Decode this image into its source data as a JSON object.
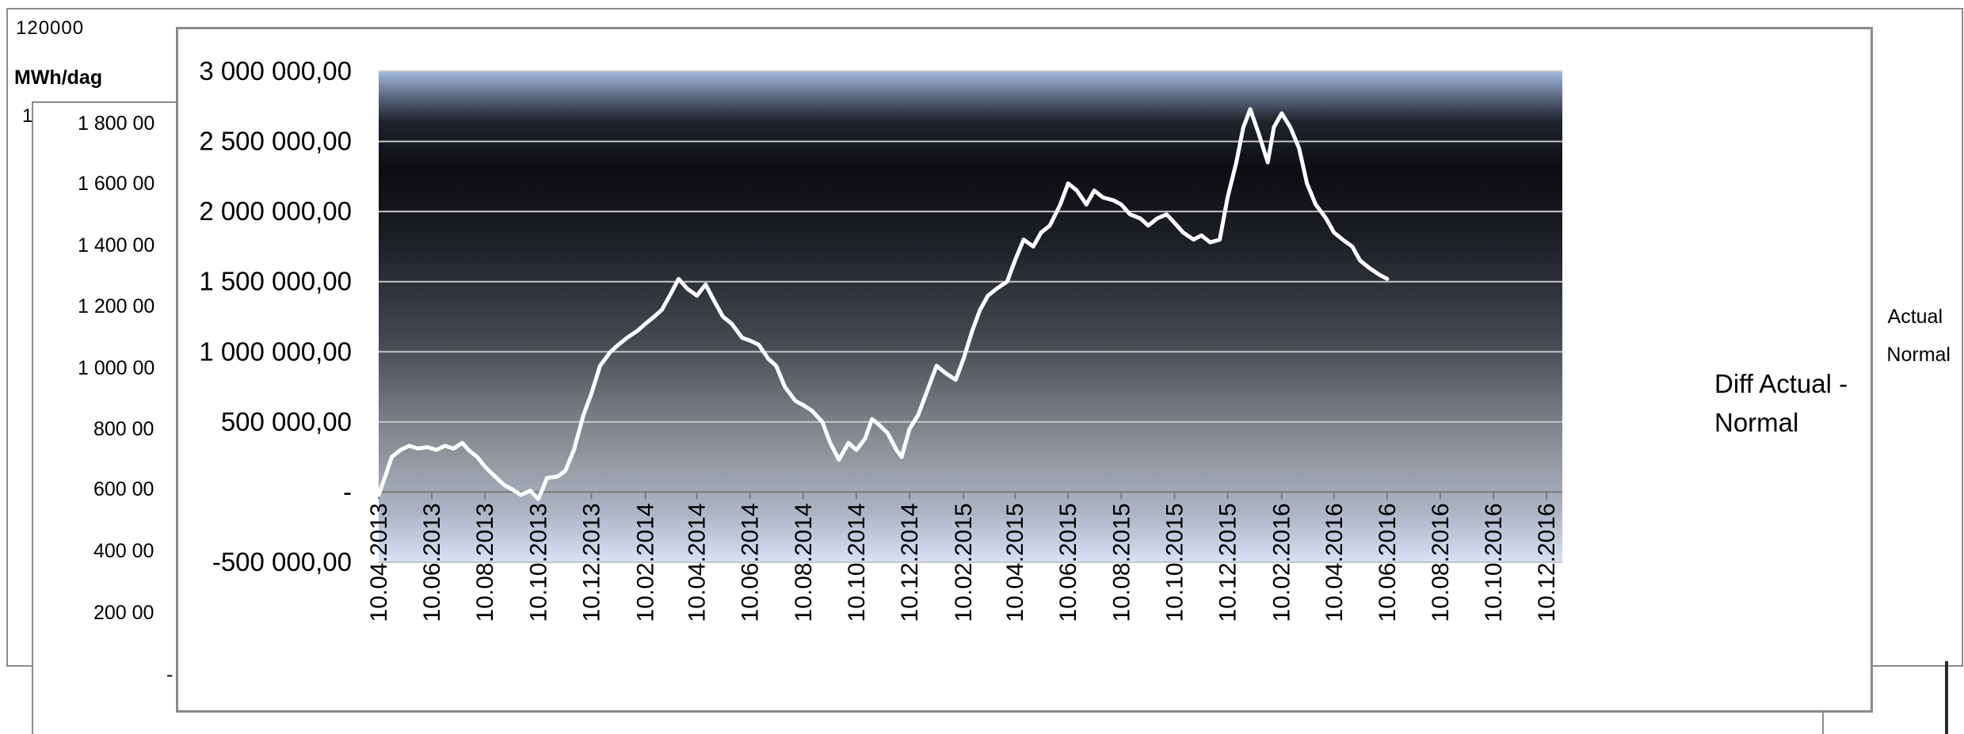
{
  "back_chart": {
    "ytick_top": "120000",
    "ylabel": "MWh/dag",
    "ytick_partial": "1"
  },
  "middle_chart": {
    "yticks": [
      "1 800 00",
      "1 600 00",
      "1 400 00",
      "1 200 00",
      "1 000 00",
      "800 00",
      "600 00",
      "400 00",
      "200 00",
      "-"
    ],
    "legend_fragments": [
      "Actual",
      "Normal"
    ]
  },
  "chart_data": {
    "type": "line",
    "title": "",
    "xlabel": "",
    "ylabel": "",
    "ylim": [
      -500000,
      3000000
    ],
    "yticks": [
      3000000,
      2500000,
      2000000,
      1500000,
      1000000,
      500000,
      0,
      -500000
    ],
    "ytick_labels": [
      "3 000 000,00",
      "2 500 000,00",
      "2 000 000,00",
      "1 500 000,00",
      "1 000 000,00",
      "500 000,00",
      "-",
      "-500 000,00"
    ],
    "x_type": "date",
    "xlim": [
      "2013-04-10",
      "2016-12-28"
    ],
    "xticks": [
      "2013-04-10",
      "2013-06-10",
      "2013-08-10",
      "2013-10-10",
      "2013-12-10",
      "2014-02-10",
      "2014-04-10",
      "2014-06-10",
      "2014-08-10",
      "2014-10-10",
      "2014-12-10",
      "2015-02-10",
      "2015-04-10",
      "2015-06-10",
      "2015-08-10",
      "2015-10-10",
      "2015-12-10",
      "2016-02-10",
      "2016-04-10",
      "2016-06-10",
      "2016-08-10",
      "2016-10-10",
      "2016-12-10"
    ],
    "xtick_labels": [
      "10.04.2013",
      "10.06.2013",
      "10.08.2013",
      "10.10.2013",
      "10.12.2013",
      "10.02.2014",
      "10.04.2014",
      "10.06.2014",
      "10.08.2014",
      "10.10.2014",
      "10.12.2014",
      "10.02.2015",
      "10.04.2015",
      "10.06.2015",
      "10.08.2015",
      "10.10.2015",
      "10.12.2015",
      "10.02.2016",
      "10.04.2016",
      "10.06.2016",
      "10.08.2016",
      "10.10.2016",
      "10.12.2016"
    ],
    "grid": "horizontal",
    "legend_position": "right",
    "series": [
      {
        "name": "Diff Actual - Normal",
        "color": "#ffffff",
        "x": [
          "2013-04-10",
          "2013-04-18",
          "2013-04-25",
          "2013-05-05",
          "2013-05-15",
          "2013-05-25",
          "2013-06-05",
          "2013-06-15",
          "2013-06-25",
          "2013-07-05",
          "2013-07-15",
          "2013-07-22",
          "2013-08-01",
          "2013-08-10",
          "2013-08-20",
          "2013-09-01",
          "2013-09-10",
          "2013-09-20",
          "2013-10-01",
          "2013-10-10",
          "2013-10-15",
          "2013-10-20",
          "2013-11-01",
          "2013-11-10",
          "2013-11-20",
          "2013-12-01",
          "2013-12-10",
          "2013-12-20",
          "2014-01-01",
          "2014-01-10",
          "2014-01-20",
          "2014-02-01",
          "2014-02-10",
          "2014-02-20",
          "2014-03-01",
          "2014-03-10",
          "2014-03-20",
          "2014-03-30",
          "2014-04-10",
          "2014-04-20",
          "2014-05-01",
          "2014-05-10",
          "2014-05-20",
          "2014-06-01",
          "2014-06-10",
          "2014-06-20",
          "2014-07-01",
          "2014-07-10",
          "2014-07-20",
          "2014-08-01",
          "2014-08-10",
          "2014-08-20",
          "2014-09-01",
          "2014-09-10",
          "2014-09-20",
          "2014-10-01",
          "2014-10-10",
          "2014-10-20",
          "2014-10-28",
          "2014-11-05",
          "2014-11-15",
          "2014-11-25",
          "2014-12-01",
          "2014-12-10",
          "2014-12-20",
          "2015-01-01",
          "2015-01-10",
          "2015-01-20",
          "2015-02-01",
          "2015-02-10",
          "2015-02-20",
          "2015-03-01",
          "2015-03-10",
          "2015-03-20",
          "2015-04-01",
          "2015-04-10",
          "2015-04-20",
          "2015-05-01",
          "2015-05-10",
          "2015-05-20",
          "2015-06-01",
          "2015-06-10",
          "2015-06-20",
          "2015-07-01",
          "2015-07-10",
          "2015-07-20",
          "2015-08-01",
          "2015-08-10",
          "2015-08-20",
          "2015-09-01",
          "2015-09-10",
          "2015-09-20",
          "2015-10-01",
          "2015-10-10",
          "2015-10-20",
          "2015-11-01",
          "2015-11-10",
          "2015-11-20",
          "2015-12-01",
          "2015-12-10",
          "2015-12-20",
          "2015-12-28",
          "2016-01-05",
          "2016-01-15",
          "2016-01-25",
          "2016-02-01",
          "2016-02-10",
          "2016-02-20",
          "2016-03-01",
          "2016-03-10",
          "2016-03-20",
          "2016-04-01",
          "2016-04-10",
          "2016-04-20",
          "2016-05-01",
          "2016-05-10",
          "2016-05-20",
          "2016-06-01",
          "2016-06-10"
        ],
        "y": [
          -20000,
          120000,
          250000,
          300000,
          330000,
          310000,
          320000,
          300000,
          330000,
          310000,
          350000,
          300000,
          250000,
          180000,
          120000,
          50000,
          20000,
          -20000,
          10000,
          -50000,
          20000,
          100000,
          110000,
          150000,
          300000,
          550000,
          700000,
          900000,
          1000000,
          1050000,
          1100000,
          1150000,
          1200000,
          1250000,
          1300000,
          1400000,
          1520000,
          1450000,
          1400000,
          1480000,
          1350000,
          1250000,
          1200000,
          1100000,
          1080000,
          1050000,
          950000,
          900000,
          750000,
          650000,
          620000,
          580000,
          500000,
          350000,
          230000,
          350000,
          300000,
          380000,
          520000,
          480000,
          420000,
          300000,
          250000,
          450000,
          550000,
          750000,
          900000,
          850000,
          800000,
          950000,
          1150000,
          1300000,
          1400000,
          1450000,
          1500000,
          1650000,
          1800000,
          1750000,
          1850000,
          1900000,
          2050000,
          2200000,
          2150000,
          2050000,
          2150000,
          2100000,
          2080000,
          2050000,
          1980000,
          1950000,
          1900000,
          1950000,
          1980000,
          1920000,
          1850000,
          1800000,
          1830000,
          1780000,
          1800000,
          2100000,
          2350000,
          2600000,
          2730000,
          2550000,
          2350000,
          2600000,
          2700000,
          2600000,
          2450000,
          2200000,
          2050000,
          1950000,
          1850000,
          1800000,
          1750000,
          1650000,
          1600000,
          1550000,
          1520000
        ]
      }
    ]
  }
}
